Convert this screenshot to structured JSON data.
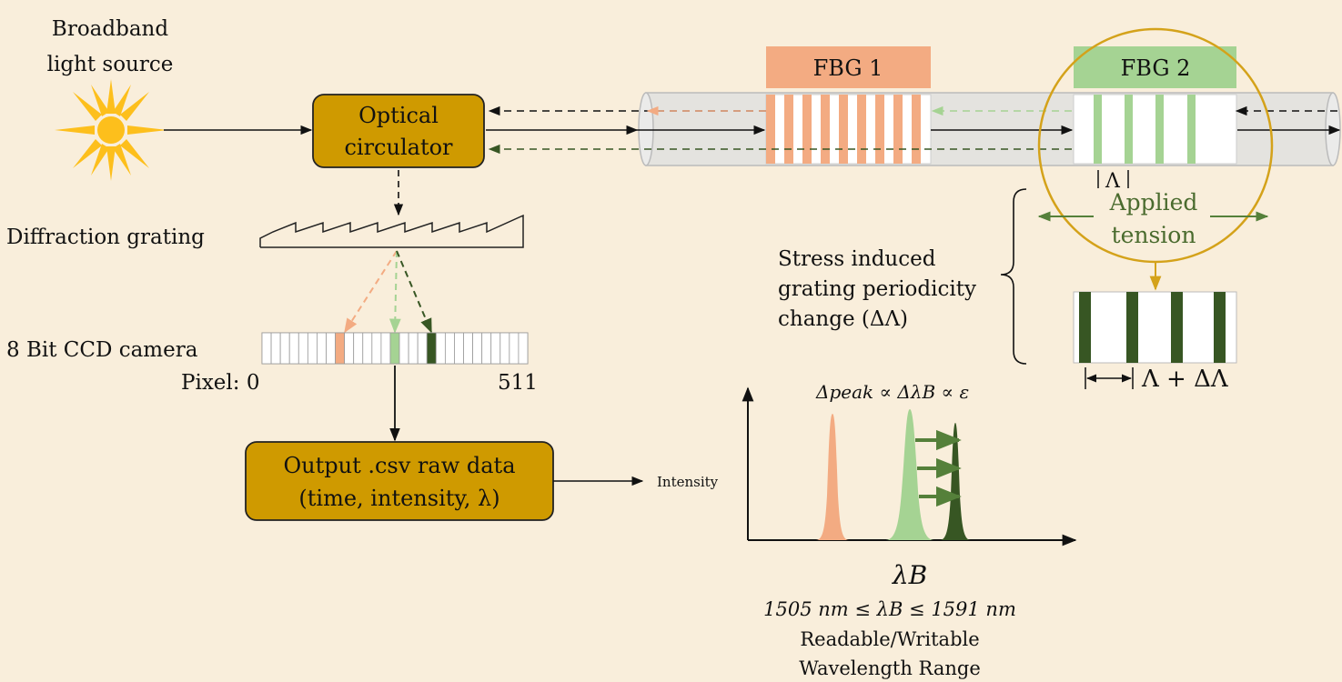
{
  "source": {
    "line1": "Broadband",
    "line2": "light source"
  },
  "circulator": {
    "line1": "Optical",
    "line2": "circulator"
  },
  "fbg1": {
    "label": "FBG 1"
  },
  "fbg2": {
    "label": "FBG 2"
  },
  "grating": {
    "label": "Diffraction grating"
  },
  "camera": {
    "label": "8 Bit CCD camera",
    "pixel_label": "Pixel: 0",
    "pixel_max": "511"
  },
  "output": {
    "line1": "Output .csv raw data",
    "line2": "(time, intensity, λ)"
  },
  "period": {
    "label": "Λ",
    "strained": "Λ + ΔΛ"
  },
  "tension": {
    "line1": "Applied",
    "line2": "tension"
  },
  "stress": {
    "line1": "Stress induced",
    "line2": "grating periodicity",
    "line3": "change (ΔΛ)"
  },
  "spectrum": {
    "y_label": "Intensity",
    "peak_relation": "Δpeak ∝ ΔλB ∝ ε",
    "x_label": "λB",
    "range": "1505 nm ≤ λB ≤ 1591 nm",
    "range_note1": "Readable/Writable",
    "range_note2": "Wavelength Range"
  },
  "colors": {
    "background": "#f9eedb",
    "box_fill": "#cf9a00",
    "fbg1": "#f3ab82",
    "fbg2_light": "#a5d393",
    "fbg2_dark": "#375623",
    "tension_circle": "#d4a21a"
  }
}
